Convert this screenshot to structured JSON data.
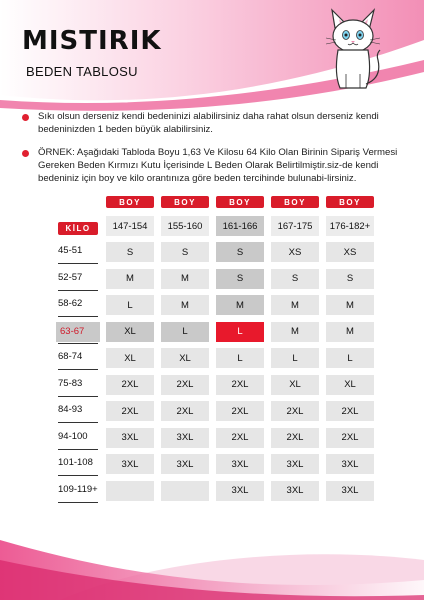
{
  "brand": {
    "name": "MISTIRIK",
    "subtitle": "BEDEN TABLOSU",
    "logo_icon": "cat-icon"
  },
  "notes": [
    "Sıkı olsun derseniz kendi bedeninizi alabilirsiniz daha rahat olsun derseniz kendi bedeninizden 1 beden büyük alabilirsiniz.",
    "ÖRNEK: Aşağıdaki Tabloda Boyu 1,63 Ve Kilosu 64 Kilo Olan Birinin Sipariş Vermesi Gereken Beden Kırmızı Kutu İçerisinde L Beden Olarak Belirtilmiştir.siz-de kendi bedeniniz için boy ve kilo orantınıza göre beden tercihinde bulunabi-lirsiniz."
  ],
  "table": {
    "boy_label": "BOY",
    "kilo_label": "KİLO",
    "height_ranges": [
      "147-154",
      "155-160",
      "161-166",
      "167-175",
      "176-182+"
    ],
    "rows": [
      {
        "weight": "45-51",
        "sizes": [
          "S",
          "S",
          "S",
          "XS",
          "XS"
        ]
      },
      {
        "weight": "52-57",
        "sizes": [
          "M",
          "M",
          "S",
          "S",
          "S"
        ]
      },
      {
        "weight": "58-62",
        "sizes": [
          "L",
          "M",
          "M",
          "M",
          "M"
        ]
      },
      {
        "weight": "63-67",
        "sizes": [
          "XL",
          "L",
          "L",
          "M",
          "M"
        ]
      },
      {
        "weight": "68-74",
        "sizes": [
          "XL",
          "XL",
          "L",
          "L",
          "L"
        ]
      },
      {
        "weight": "75-83",
        "sizes": [
          "2XL",
          "2XL",
          "2XL",
          "XL",
          "XL"
        ]
      },
      {
        "weight": "84-93",
        "sizes": [
          "2XL",
          "2XL",
          "2XL",
          "2XL",
          "2XL"
        ]
      },
      {
        "weight": "94-100",
        "sizes": [
          "3XL",
          "3XL",
          "2XL",
          "2XL",
          "2XL"
        ]
      },
      {
        "weight": "101-108",
        "sizes": [
          "3XL",
          "3XL",
          "3XL",
          "3XL",
          "3XL"
        ]
      },
      {
        "weight": "109-119+",
        "sizes": [
          "",
          "",
          "3XL",
          "3XL",
          "3XL"
        ]
      }
    ],
    "highlight": {
      "row": 3,
      "col": 2
    },
    "colors": {
      "accent_red": "#d91c2a",
      "cell_grey": "#e6e6e6",
      "highlight_grey": "#c9c9c9",
      "pink": "#e8337a"
    }
  }
}
